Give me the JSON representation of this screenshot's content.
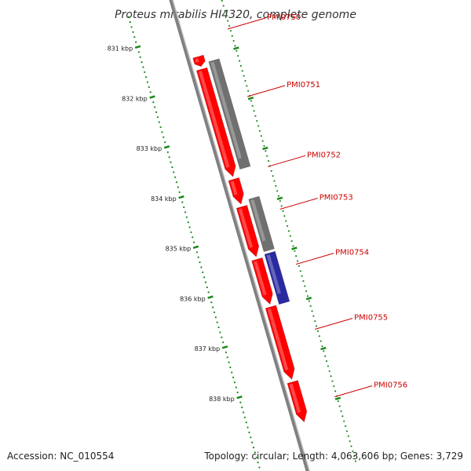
{
  "title": "Proteus mirabilis HI4320, complete genome",
  "footer": {
    "accession": "Accession: NC_010554",
    "summary": "Topology: circular; Length: 4,063,606 bp; Genes: 3,729"
  },
  "colors": {
    "backbone": "#808080",
    "ruler": "#1a8a1a",
    "leader": "#cc0000",
    "cds": "#ff0000",
    "gene": "#707070",
    "other": "#2a2aa0"
  },
  "ruler": {
    "kbp_ticks": [
      {
        "kbp": 831,
        "label": "831 kbp"
      },
      {
        "kbp": 832,
        "label": "832 kbp"
      },
      {
        "kbp": 833,
        "label": "833 kbp"
      },
      {
        "kbp": 834,
        "label": "834 kbp"
      },
      {
        "kbp": 835,
        "label": "835 kbp"
      },
      {
        "kbp": 836,
        "label": "836 kbp"
      },
      {
        "kbp": 837,
        "label": "837 kbp"
      },
      {
        "kbp": 838,
        "label": "838 kbp"
      }
    ]
  },
  "features": [
    {
      "type": "CDS",
      "start_kbp": 831.5,
      "end_kbp": 831.7,
      "color": "#ff0000"
    },
    {
      "type": "CDS",
      "start_kbp": 831.75,
      "end_kbp": 833.9,
      "color": "#ff0000"
    },
    {
      "type": "CDS",
      "start_kbp": 833.95,
      "end_kbp": 834.45,
      "color": "#ff0000"
    },
    {
      "type": "CDS",
      "start_kbp": 834.5,
      "end_kbp": 835.5,
      "color": "#ff0000"
    },
    {
      "type": "CDS",
      "start_kbp": 835.55,
      "end_kbp": 836.45,
      "color": "#ff0000"
    },
    {
      "type": "CDS",
      "start_kbp": 836.5,
      "end_kbp": 837.95,
      "color": "#ff0000"
    },
    {
      "type": "CDS",
      "start_kbp": 838.0,
      "end_kbp": 838.8,
      "color": "#ff0000"
    },
    {
      "type": "gene",
      "start_kbp": 831.65,
      "end_kbp": 833.8,
      "color": "#707070"
    },
    {
      "type": "gene",
      "start_kbp": 834.4,
      "end_kbp": 835.45,
      "color": "#707070"
    },
    {
      "type": "misc",
      "start_kbp": 835.5,
      "end_kbp": 836.5,
      "color": "#2a2aa0"
    }
  ],
  "gene_labels": [
    {
      "name": "PMI0750",
      "kbp": 831.15
    },
    {
      "name": "PMI0751",
      "kbp": 832.5
    },
    {
      "name": "PMI0752",
      "kbp": 833.9
    },
    {
      "name": "PMI0753",
      "kbp": 834.75
    },
    {
      "name": "PMI0754",
      "kbp": 835.85
    },
    {
      "name": "PMI0755",
      "kbp": 837.15
    },
    {
      "name": "PMI0756",
      "kbp": 838.5
    }
  ]
}
